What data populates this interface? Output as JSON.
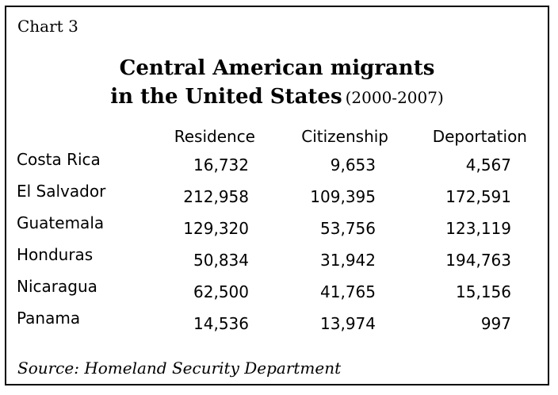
{
  "chart_label": "Chart 3",
  "chart_data": {
    "type": "table",
    "title_line1": "Central American migrants",
    "title_line2": "in the United States",
    "period": "(2000-2007)",
    "columns": [
      "Residence",
      "Citizenship",
      "Deportation"
    ],
    "rows": [
      {
        "country": "Costa Rica",
        "values": [
          "16,732",
          "9,653",
          "4,567"
        ]
      },
      {
        "country": "El Salvador",
        "values": [
          "212,958",
          "109,395",
          "172,591"
        ]
      },
      {
        "country": "Guatemala",
        "values": [
          "129,320",
          "53,756",
          "123,119"
        ]
      },
      {
        "country": "Honduras",
        "values": [
          "50,834",
          "31,942",
          "194,763"
        ]
      },
      {
        "country": "Nicaragua",
        "values": [
          "62,500",
          "41,765",
          "15,156"
        ]
      },
      {
        "country": "Panama",
        "values": [
          "14,536",
          "13,974",
          "997"
        ]
      }
    ]
  },
  "source": "Source: Homeland Security Department"
}
